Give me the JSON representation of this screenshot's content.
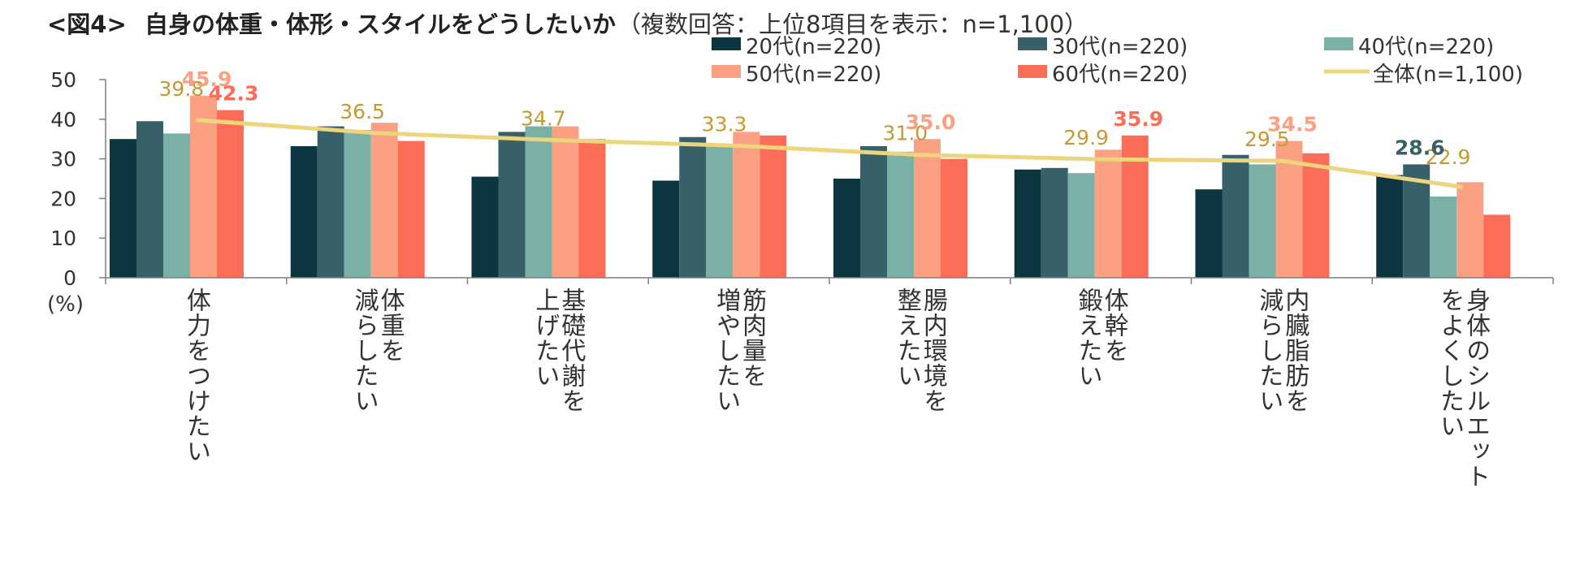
{
  "title_prefix": "<図4>",
  "title_main": "自身の体重・体形・スタイルをどうしたいか",
  "title_note": "（複数回答：上位8項目を表示：n=1,100）",
  "colors": {
    "s20": "#0b3640",
    "s30": "#376069",
    "s40": "#7ab0a5",
    "s50": "#fca083",
    "s60": "#fb6d57",
    "total": "#ecd57d",
    "total_label": "#c49a34",
    "axis": "#7f7f7f",
    "text": "#333333"
  },
  "chart_data": {
    "type": "bar",
    "ylabel": "(%)",
    "ylim": [
      0,
      50
    ],
    "yticks": [
      0,
      10,
      20,
      30,
      40,
      50
    ],
    "categories": [
      "体力をつけたい",
      "体重を減らしたい",
      "基礎代謝を上げたい",
      "筋肉量を増やしたい",
      "腸内環境を整えたい",
      "体幹を鍛えたい",
      "内臓脂肪を減らしたい",
      "身体のシルエットをよくしたい"
    ],
    "category_lines": [
      [
        "体力をつけたい"
      ],
      [
        "体重を",
        "減らしたい"
      ],
      [
        "基礎代謝を",
        "上げたい"
      ],
      [
        "筋肉量を",
        "増やしたい"
      ],
      [
        "腸内環境を",
        "整えたい"
      ],
      [
        "体幹を",
        "鍛えたい"
      ],
      [
        "内臓脂肪を",
        "減らしたい"
      ],
      [
        "身体のシルエット",
        "をよくしたい"
      ]
    ],
    "series": [
      {
        "name": "20代(n=220)",
        "color_key": "s20",
        "values": [
          35.0,
          33.2,
          25.5,
          24.5,
          25.0,
          27.3,
          22.3,
          25.9
        ]
      },
      {
        "name": "30代(n=220)",
        "color_key": "s30",
        "values": [
          39.5,
          38.2,
          36.8,
          35.5,
          33.2,
          27.7,
          31.0,
          28.6
        ]
      },
      {
        "name": "40代(n=220)",
        "color_key": "s40",
        "values": [
          36.4,
          37.3,
          38.2,
          33.6,
          31.8,
          26.4,
          28.6,
          20.5
        ]
      },
      {
        "name": "50代(n=220)",
        "color_key": "s50",
        "values": [
          45.9,
          39.1,
          38.2,
          36.8,
          35.0,
          32.3,
          34.5,
          24.1
        ]
      },
      {
        "name": "60代(n=220)",
        "color_key": "s60",
        "values": [
          42.3,
          34.5,
          35.0,
          35.9,
          30.0,
          35.9,
          31.4,
          15.9
        ]
      }
    ],
    "total": {
      "name": "全体(n=1,100)",
      "color_key": "total",
      "values": [
        39.8,
        36.5,
        34.7,
        33.3,
        31.0,
        29.9,
        29.5,
        22.9
      ]
    },
    "total_labels": [
      "39.8",
      "36.5",
      "34.7",
      "33.3",
      "31.0",
      "29.9",
      "29.5",
      "22.9"
    ],
    "highlights": [
      {
        "category": 0,
        "series": 3,
        "text": "45.9",
        "color_key": "s50"
      },
      {
        "category": 0,
        "series": 4,
        "text": "42.3",
        "color_key": "s60"
      },
      {
        "category": 4,
        "series": 3,
        "text": "35.0",
        "color_key": "s50"
      },
      {
        "category": 5,
        "series": 4,
        "text": "35.9",
        "color_key": "s60"
      },
      {
        "category": 6,
        "series": 3,
        "text": "34.5",
        "color_key": "s50"
      },
      {
        "category": 7,
        "series": 1,
        "text": "28.6",
        "color_key": "s30"
      }
    ]
  }
}
